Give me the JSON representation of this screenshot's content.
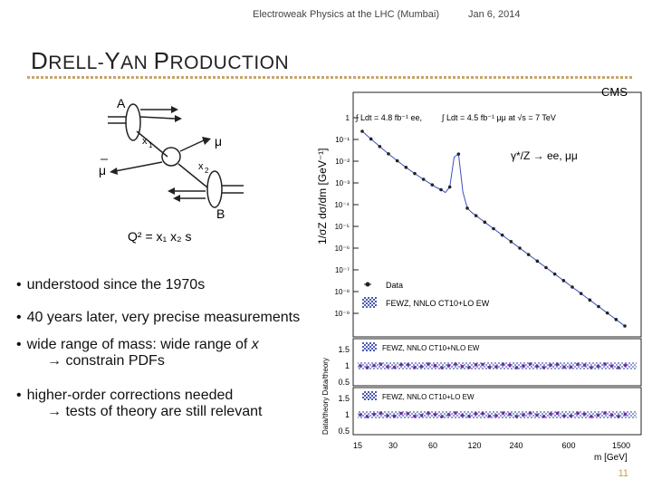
{
  "header": {
    "conference": "Electroweak Physics at the LHC (Mumbai)",
    "date": "Jan 6, 2014"
  },
  "title": {
    "part1_cap": "D",
    "part1_rest": "RELL-",
    "part2_cap": "Y",
    "part2_rest": "AN ",
    "part3_cap": "P",
    "part3_rest": "RODUCTION"
  },
  "diagram": {
    "label_A": "A",
    "label_x1": "x",
    "label_x1_sub": "1",
    "label_mu": "μ",
    "label_mubar": "μ",
    "label_x2": "x",
    "label_x2_sub": "2",
    "label_B": "B",
    "formula": "Q² = x₁ x₂ s"
  },
  "plot": {
    "experiment": "CMS",
    "lumi_ee": "∫ Ldt = 4.8 fb⁻¹ ee,",
    "lumi_mumu": "∫ Ldt = 4.5 fb⁻¹ μμ at √s = 7 TeV",
    "process": "γ*/Z → ee, μμ",
    "ylabel_top": "1/σZ dσ/dm [GeV⁻¹]",
    "ylabel_ratio": "Data/theory Data/theory",
    "xlabel": "m [GeV]",
    "legend_data": "Data",
    "legend_fewz_main": "FEWZ, NNLO CT10+LO EW",
    "legend_ratio1": "FEWZ, NNLO CT10+NLO EW",
    "legend_ratio2": "FEWZ, NNLO CT10+LO EW",
    "y_ticks": [
      "1",
      "10⁻¹",
      "10⁻²",
      "10⁻³",
      "10⁻⁴",
      "10⁻⁵",
      "10⁻⁶",
      "10⁻⁷",
      "10⁻⁸",
      "10⁻⁹"
    ],
    "ratio_ticks": [
      "1.5",
      "1",
      "0.5"
    ],
    "x_ticks": [
      "15",
      "30",
      "60",
      "120",
      "240",
      "600",
      "1500"
    ]
  },
  "bullets": {
    "b1": "understood since the 1970s",
    "b2": "40 years later, very precise measurements",
    "b3_main": "wide range of mass: wide range of ",
    "b3_var": "x",
    "b3_sub": "constrain PDFs",
    "b4_main": "higher-order corrections needed",
    "b4_sub": "tests of theory are still relevant",
    "arrow": "→"
  },
  "slide_number": "11"
}
